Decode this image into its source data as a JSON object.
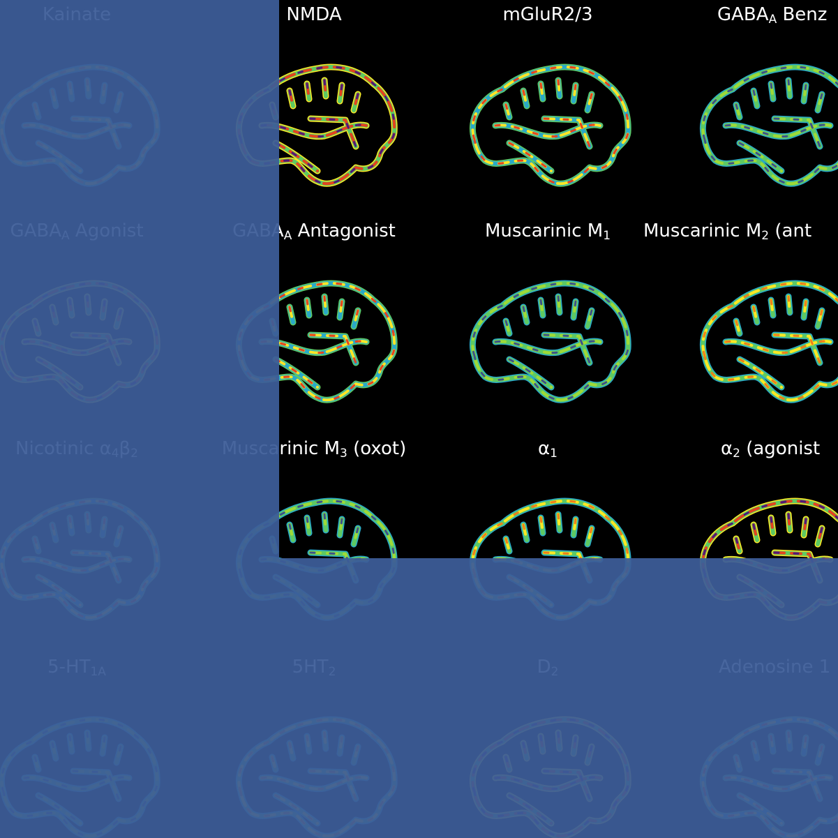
{
  "panels": [
    {
      "title": [
        {
          "text": "Kainate"
        }
      ]
    },
    {
      "title": [
        {
          "text": "NMDA"
        }
      ]
    },
    {
      "title": [
        {
          "text": "mGluR2/3"
        }
      ]
    },
    {
      "title": [
        {
          "text": "GABA"
        },
        {
          "sub": "A"
        },
        {
          "text": " Benz"
        }
      ]
    },
    {
      "title": [
        {
          "text": "GABA"
        },
        {
          "sub": "A"
        },
        {
          "text": " Agonist"
        }
      ]
    },
    {
      "title": [
        {
          "text": "GABA"
        },
        {
          "sub": "A"
        },
        {
          "text": " Antagonist"
        }
      ]
    },
    {
      "title": [
        {
          "text": "Muscarinic M"
        },
        {
          "sub": "1"
        }
      ]
    },
    {
      "title": [
        {
          "text": "Muscarinic M"
        },
        {
          "sub": "2"
        },
        {
          "text": " (ant"
        }
      ]
    },
    {
      "title": [
        {
          "text": "Nicotinic α"
        },
        {
          "sub": "4"
        },
        {
          "text": "β"
        },
        {
          "sub": "2"
        }
      ]
    },
    {
      "title": [
        {
          "text": "Muscarinic M"
        },
        {
          "sub": "3"
        },
        {
          "text": " (oxot)"
        }
      ]
    },
    {
      "title": [
        {
          "text": "α"
        },
        {
          "sub": "1"
        }
      ]
    },
    {
      "title": [
        {
          "text": "α"
        },
        {
          "sub": "2"
        },
        {
          "text": " (agonist"
        }
      ]
    },
    {
      "title": [
        {
          "text": "5-HT"
        },
        {
          "sub": "1A"
        }
      ]
    },
    {
      "title": [
        {
          "text": "5HT"
        },
        {
          "sub": "2"
        }
      ]
    },
    {
      "title": [
        {
          "text": "D"
        },
        {
          "sub": "2"
        }
      ]
    },
    {
      "title": [
        {
          "text": "Adenosine 1"
        }
      ]
    }
  ]
}
